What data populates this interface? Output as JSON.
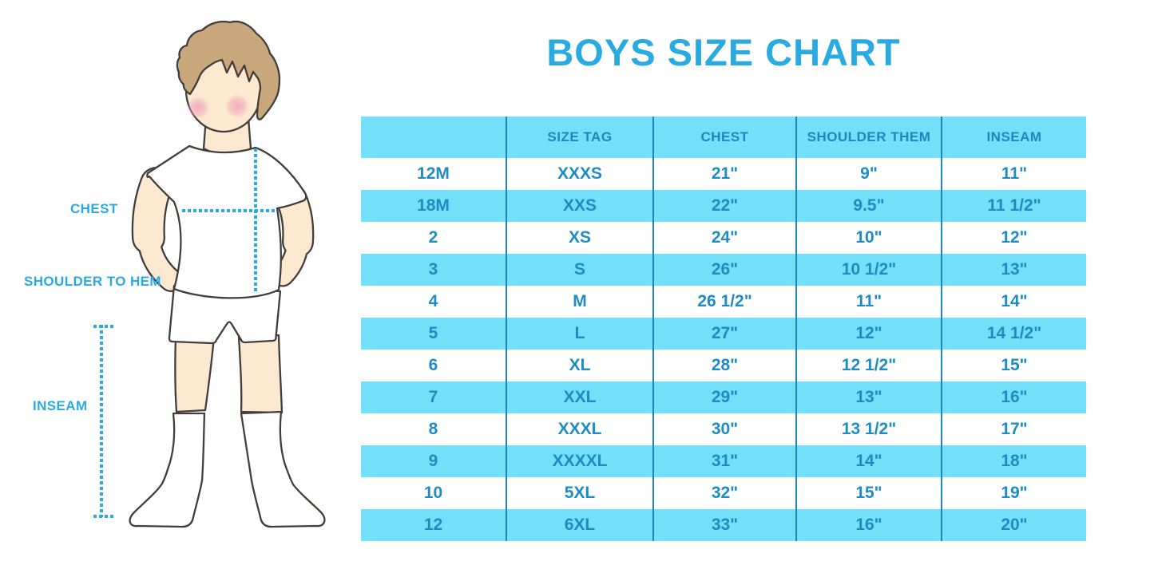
{
  "title": "BOYS SIZE CHART",
  "colors": {
    "accent": "#29ABE2",
    "stripe": "#74DFF8",
    "table_line": "#1F86BE",
    "table_text": "#1E8CC3",
    "header_text": "#1D87BE"
  },
  "figure": {
    "chest_label": "CHEST",
    "shoulder_label": "SHOULDER TO HEM",
    "inseam_label": "INSEAM"
  },
  "chart_data": {
    "type": "table",
    "title": "BOYS SIZE CHART",
    "columns": [
      "",
      "SIZE TAG",
      "CHEST",
      "SHOULDER THEM",
      "INSEAM"
    ],
    "rows": [
      [
        "12M",
        "XXXS",
        "21\"",
        "9\"",
        "11\""
      ],
      [
        "18M",
        "XXS",
        "22\"",
        "9.5\"",
        "11 1/2\""
      ],
      [
        "2",
        "XS",
        "24\"",
        "10\"",
        "12\""
      ],
      [
        "3",
        "S",
        "26\"",
        "10 1/2\"",
        "13\""
      ],
      [
        "4",
        "M",
        "26 1/2\"",
        "11\"",
        "14\""
      ],
      [
        "5",
        "L",
        "27\"",
        "12\"",
        "14 1/2\""
      ],
      [
        "6",
        "XL",
        "28\"",
        "12 1/2\"",
        "15\""
      ],
      [
        "7",
        "XXL",
        "29\"",
        "13\"",
        "16\""
      ],
      [
        "8",
        "XXXL",
        "30\"",
        "13 1/2\"",
        "17\""
      ],
      [
        "9",
        "XXXXL",
        "31\"",
        "14\"",
        "18\""
      ],
      [
        "10",
        "5XL",
        "32\"",
        "15\"",
        "19\""
      ],
      [
        "12",
        "6XL",
        "33\"",
        "16\"",
        "20\""
      ]
    ]
  }
}
